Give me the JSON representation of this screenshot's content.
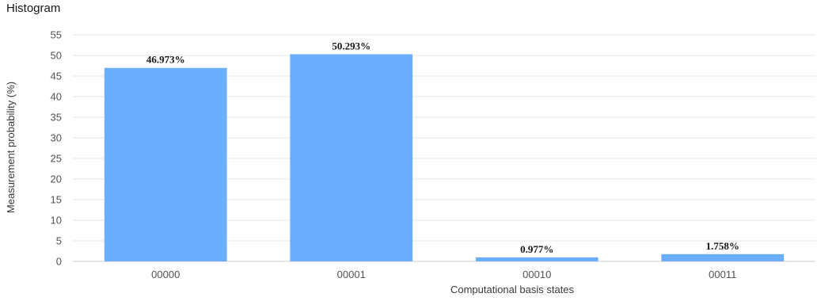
{
  "chart_data": {
    "type": "bar",
    "title": "Histogram",
    "xlabel": "Computational basis states",
    "ylabel": "Measurement probability (%)",
    "categories": [
      "00000",
      "00001",
      "00010",
      "00011"
    ],
    "values": [
      46.973,
      50.293,
      0.977,
      1.758
    ],
    "data_labels": [
      "46.973%",
      "50.293%",
      "0.977%",
      "1.758%"
    ],
    "ylim": [
      0,
      55
    ],
    "yticks": [
      0,
      5,
      10,
      15,
      20,
      25,
      30,
      35,
      40,
      45,
      50,
      55
    ],
    "grid": true,
    "bar_color": "#6aaefd"
  }
}
